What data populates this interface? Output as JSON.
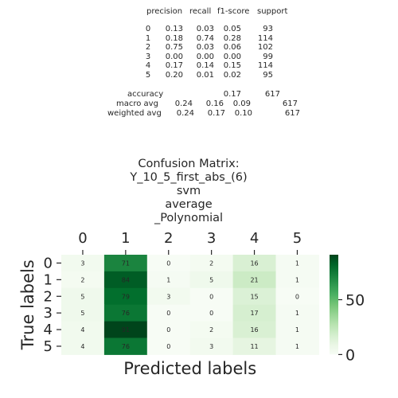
{
  "report": {
    "header": [
      "precision",
      "recall",
      "f1-score",
      "support"
    ],
    "rows": [
      {
        "label": "0",
        "values": [
          "0.13",
          "0.03",
          "0.05",
          "93"
        ]
      },
      {
        "label": "1",
        "values": [
          "0.18",
          "0.74",
          "0.28",
          "114"
        ]
      },
      {
        "label": "2",
        "values": [
          "0.75",
          "0.03",
          "0.06",
          "102"
        ]
      },
      {
        "label": "3",
        "values": [
          "0.00",
          "0.00",
          "0.00",
          "99"
        ]
      },
      {
        "label": "4",
        "values": [
          "0.17",
          "0.14",
          "0.15",
          "114"
        ]
      },
      {
        "label": "5",
        "values": [
          "0.20",
          "0.01",
          "0.02",
          "95"
        ]
      }
    ],
    "accuracy": {
      "label": "accuracy",
      "f1": "0.17",
      "support": "617"
    },
    "macro": {
      "label": "macro avg",
      "values": [
        "0.24",
        "0.16",
        "0.09",
        "617"
      ]
    },
    "weighted": {
      "label": "weighted avg",
      "values": [
        "0.24",
        "0.17",
        "0.10",
        "617"
      ]
    }
  },
  "chart_data": {
    "type": "heatmap",
    "title_lines": [
      "Confusion Matrix:",
      "Y_10_5_first_abs_(6)",
      "svm",
      "average",
      "_Polynomial"
    ],
    "xlabel": "Predicted labels",
    "ylabel": "True labels",
    "x_categories": [
      "0",
      "1",
      "2",
      "3",
      "4",
      "5"
    ],
    "y_categories": [
      "0",
      "1",
      "2",
      "3",
      "4",
      "5"
    ],
    "values": [
      [
        3,
        71,
        0,
        2,
        16,
        1
      ],
      [
        2,
        84,
        1,
        5,
        21,
        1
      ],
      [
        5,
        79,
        3,
        0,
        15,
        0
      ],
      [
        5,
        76,
        0,
        0,
        17,
        1
      ],
      [
        4,
        91,
        0,
        2,
        16,
        1
      ],
      [
        4,
        76,
        0,
        3,
        11,
        1
      ]
    ],
    "colormap": "Greens",
    "colorbar": {
      "ticks": [
        0,
        50
      ],
      "range": [
        0,
        91
      ]
    }
  }
}
